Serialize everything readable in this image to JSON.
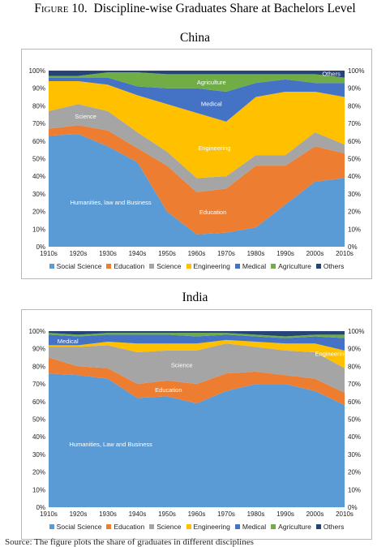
{
  "figure": {
    "label": "Figure 10.",
    "title": "Discipline-wise Graduates Share at Bachelors Level"
  },
  "footer_fragment": "Source: The figure plots the share of graduates in different disciplines",
  "colors": {
    "Social Science": "#5b9bd5",
    "Education": "#ed7d31",
    "Science": "#a5a5a5",
    "Engineering": "#ffc000",
    "Medical": "#4472c4",
    "Agriculture": "#70ad47",
    "Others": "#264478"
  },
  "chart_data": [
    {
      "type": "area",
      "stacked": true,
      "title": "China",
      "categories": [
        "1910s",
        "1920s",
        "1930s",
        "1940s",
        "1950s",
        "1960s",
        "1970s",
        "1980s",
        "1990s",
        "2000s",
        "2010s"
      ],
      "ylim": [
        0,
        100
      ],
      "y_ticks": [
        "0%",
        "10%",
        "20%",
        "30%",
        "40%",
        "50%",
        "60%",
        "70%",
        "80%",
        "90%",
        "100%"
      ],
      "secondary_y_axis": true,
      "legend_position": "bottom",
      "series": [
        {
          "name": "Social Science",
          "values": [
            63,
            64,
            57,
            48,
            20,
            7,
            8,
            11,
            24,
            37,
            39
          ]
        },
        {
          "name": "Education",
          "values": [
            4,
            5,
            9,
            8,
            26,
            24,
            25,
            35,
            22,
            20,
            14
          ]
        },
        {
          "name": "Science",
          "values": [
            10,
            12,
            11,
            9,
            8,
            8,
            7,
            6,
            6,
            8,
            5
          ]
        },
        {
          "name": "Engineering",
          "values": [
            17,
            13,
            15,
            21,
            27,
            37,
            31,
            33,
            36,
            23,
            27
          ]
        },
        {
          "name": "Medical",
          "values": [
            2,
            2,
            4,
            5,
            9,
            14,
            17,
            8,
            7,
            5,
            8
          ]
        },
        {
          "name": "Agriculture",
          "values": [
            1,
            1,
            3,
            8,
            8,
            8,
            10,
            5,
            3,
            5,
            3
          ]
        },
        {
          "name": "Others",
          "values": [
            3,
            3,
            1,
            1,
            2,
            2,
            2,
            2,
            2,
            2,
            4
          ]
        }
      ],
      "annotations": [
        {
          "text": "Humanities, law and Business",
          "series": "Social Science"
        },
        {
          "text": "Education",
          "series": "Education"
        },
        {
          "text": "Science",
          "series": "Science"
        },
        {
          "text": "Engineering",
          "series": "Engineering"
        },
        {
          "text": "Medical",
          "series": "Medical"
        },
        {
          "text": "Agriculture",
          "series": "Agriculture"
        },
        {
          "text": "Others",
          "series": "Others"
        }
      ]
    },
    {
      "type": "area",
      "stacked": true,
      "title": "India",
      "categories": [
        "1910s",
        "1920s",
        "1930s",
        "1940s",
        "1950s",
        "1960s",
        "1970s",
        "1980s",
        "1990s",
        "2000s",
        "2010s"
      ],
      "ylim": [
        0,
        100
      ],
      "y_ticks": [
        "0%",
        "10%",
        "20%",
        "30%",
        "40%",
        "50%",
        "60%",
        "70%",
        "80%",
        "90%",
        "100%"
      ],
      "secondary_y_axis": true,
      "legend_position": "bottom",
      "series": [
        {
          "name": "Social Science",
          "values": [
            76,
            75,
            73,
            62,
            63,
            59,
            66,
            70,
            70,
            66,
            58
          ]
        },
        {
          "name": "Education",
          "values": [
            9,
            5,
            6,
            8,
            9,
            11,
            10,
            7,
            5,
            7,
            7
          ]
        },
        {
          "name": "Science",
          "values": [
            6,
            11,
            13,
            18,
            17,
            19,
            17,
            14,
            14,
            15,
            14
          ]
        },
        {
          "name": "Engineering",
          "values": [
            1,
            1,
            2,
            5,
            4,
            4,
            2,
            3,
            4,
            5,
            10
          ]
        },
        {
          "name": "Medical",
          "values": [
            6,
            5,
            4,
            5,
            5,
            4,
            3,
            3,
            3,
            4,
            7
          ]
        },
        {
          "name": "Agriculture",
          "values": [
            1,
            1,
            1,
            1,
            1,
            2,
            1,
            1,
            1,
            1,
            2
          ]
        },
        {
          "name": "Others",
          "values": [
            1,
            2,
            1,
            1,
            1,
            1,
            1,
            2,
            3,
            2,
            2
          ]
        }
      ],
      "annotations": [
        {
          "text": "Humanities, Law and Business",
          "series": "Social Science"
        },
        {
          "text": "Education",
          "series": "Education"
        },
        {
          "text": "Science",
          "series": "Science"
        },
        {
          "text": "Engineering",
          "series": "Engineering"
        },
        {
          "text": "Medical",
          "series": "Medical"
        }
      ]
    }
  ]
}
